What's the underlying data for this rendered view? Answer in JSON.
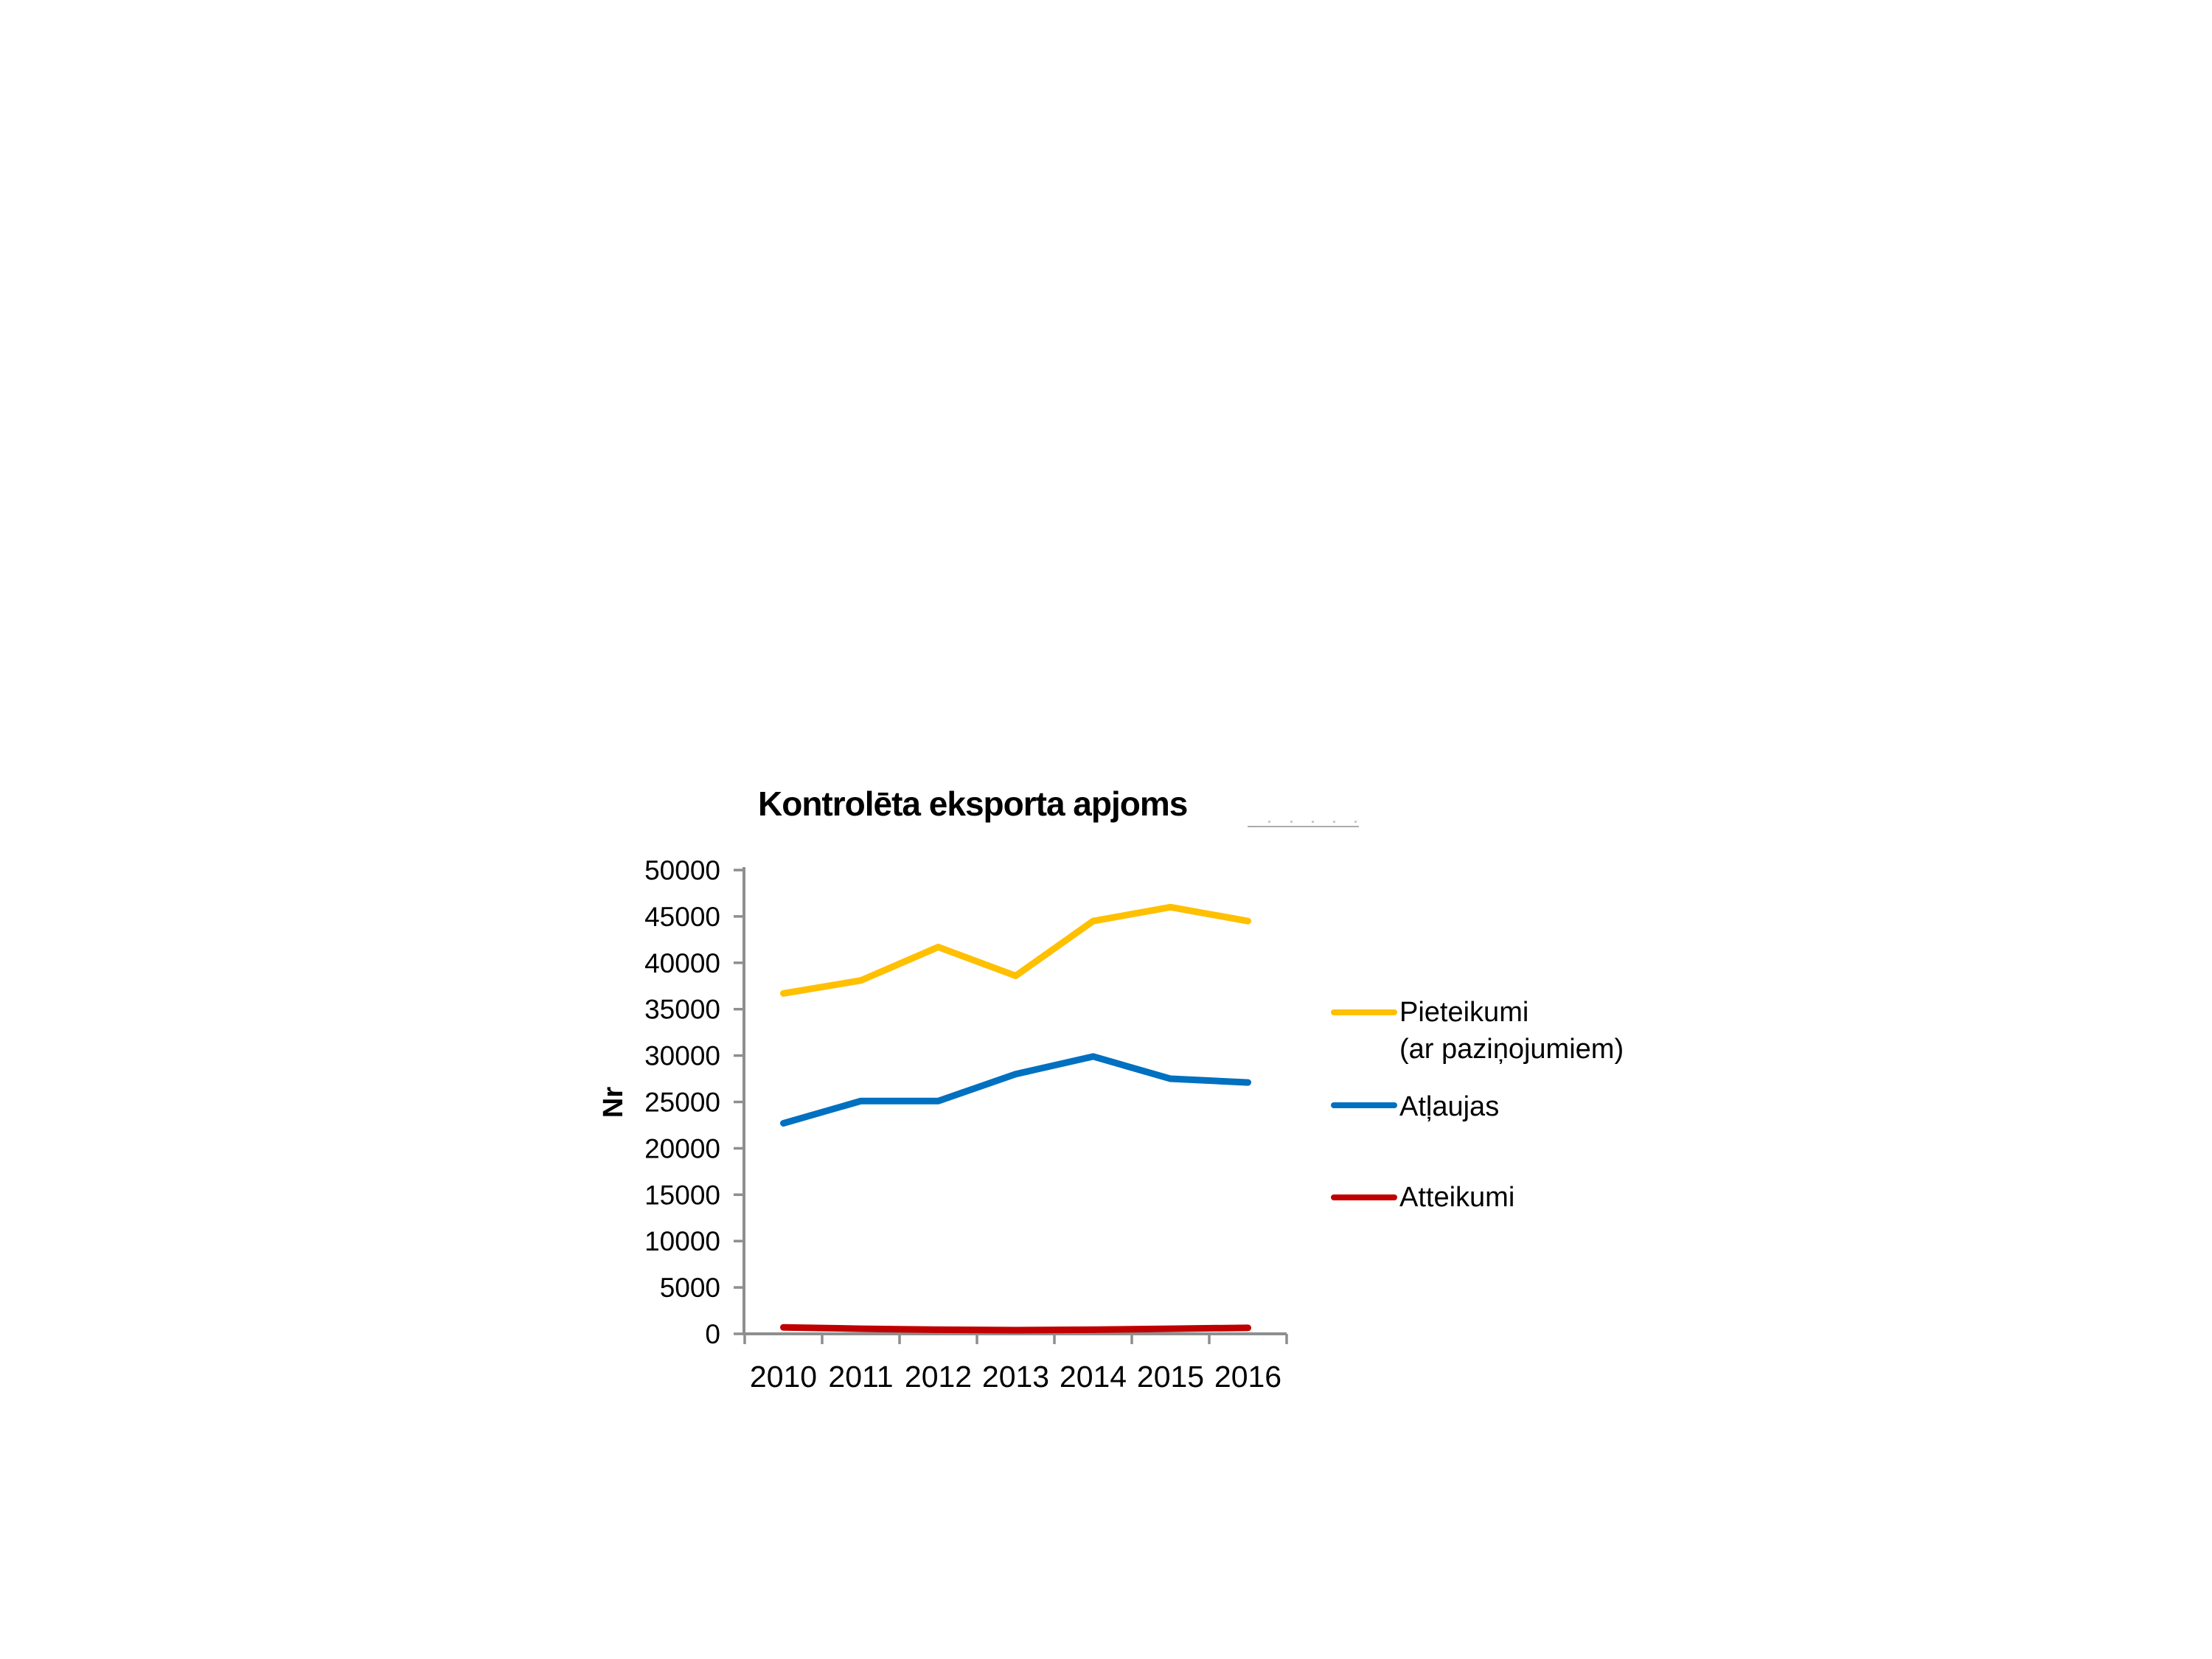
{
  "page": {
    "background": "#FFFFFF"
  },
  "chart_data": {
    "type": "line",
    "title": "Kontrolēta eksporta apjoms",
    "ylabel": "Nr",
    "xlabel": "",
    "categories": [
      "2010",
      "2011",
      "2012",
      "2013",
      "2014",
      "2015",
      "2016"
    ],
    "series": [
      {
        "name": "Pieteikumi (ar paziņojumiem)",
        "color": "#FFC000",
        "values": [
          36700,
          38100,
          41700,
          38600,
          44500,
          46000,
          44500
        ]
      },
      {
        "name": "Atļaujas",
        "color": "#0070C0",
        "values": [
          22700,
          25100,
          25100,
          28000,
          29900,
          27500,
          27100
        ]
      },
      {
        "name": "Atteikumi",
        "color": "#C00000",
        "values": [
          700,
          550,
          450,
          400,
          450,
          550,
          650
        ]
      }
    ],
    "ylim": [
      0,
      50000
    ],
    "y_ticks": [
      0,
      5000,
      10000,
      15000,
      20000,
      25000,
      30000,
      35000,
      40000,
      45000,
      50000
    ],
    "grid": false,
    "legend_position": "right",
    "axis_color": "#8E8E8E",
    "text_color": "#000000"
  },
  "legend": {
    "entries": [
      {
        "line1": "Pieteikumi",
        "line2": "(ar paziņojumiem)",
        "color": "#FFC000"
      },
      {
        "line1": "Atļaujas",
        "line2": "",
        "color": "#0070C0"
      },
      {
        "line1": "Atteikumi",
        "line2": "",
        "color": "#C00000"
      }
    ]
  }
}
